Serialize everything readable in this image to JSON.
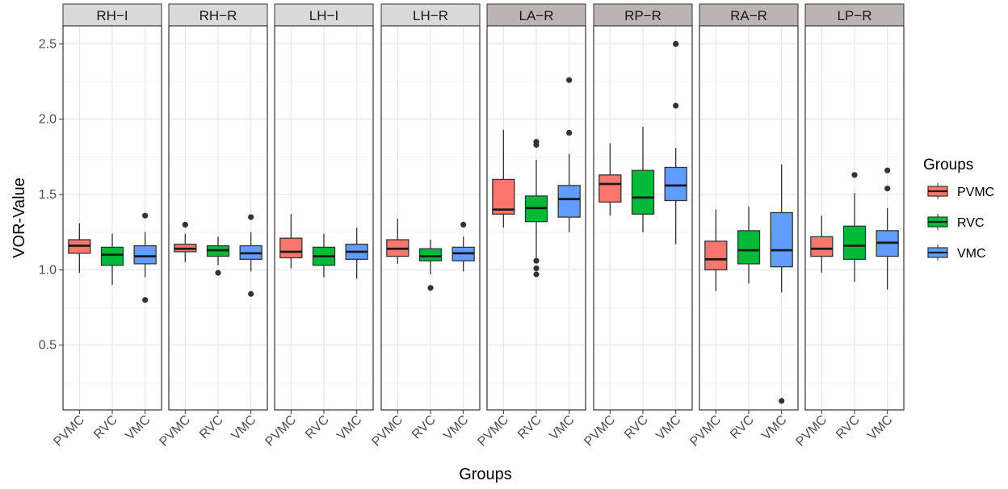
{
  "chart_data": {
    "type": "boxplot",
    "xlabel": "Groups",
    "ylabel": "VOR-Value",
    "ylim": [
      0.07,
      2.62
    ],
    "yticks": [
      0.5,
      1.0,
      1.5,
      2.0,
      2.5
    ],
    "ytick_labels": [
      "0.5",
      "1.0",
      "1.5",
      "2.0",
      "2.5"
    ],
    "categories": [
      "PVMC",
      "RVC",
      "VMC"
    ],
    "colors": {
      "PVMC": "#F8766D",
      "RVC": "#00BA38",
      "VMC": "#619CFF"
    },
    "strip_colors": {
      "light": "#d9d9d9",
      "dark": "#bcb4b4"
    },
    "legend": {
      "title": "Groups",
      "entries": [
        "PVMC",
        "RVC",
        "VMC"
      ],
      "position": "right"
    },
    "panels": [
      {
        "label": "RH−I",
        "strip": "light",
        "boxes": [
          {
            "group": "PVMC",
            "q1": 1.11,
            "median": 1.16,
            "q3": 1.2,
            "lower": 0.98,
            "upper": 1.31,
            "outliers": []
          },
          {
            "group": "RVC",
            "q1": 1.03,
            "median": 1.1,
            "q3": 1.15,
            "lower": 0.9,
            "upper": 1.24,
            "outliers": []
          },
          {
            "group": "VMC",
            "q1": 1.04,
            "median": 1.09,
            "q3": 1.16,
            "lower": 0.95,
            "upper": 1.25,
            "outliers": [
              1.36,
              0.8
            ]
          }
        ]
      },
      {
        "label": "RH−R",
        "strip": "light",
        "boxes": [
          {
            "group": "PVMC",
            "q1": 1.12,
            "median": 1.14,
            "q3": 1.17,
            "lower": 1.05,
            "upper": 1.24,
            "outliers": [
              1.3
            ]
          },
          {
            "group": "RVC",
            "q1": 1.09,
            "median": 1.13,
            "q3": 1.16,
            "lower": 1.03,
            "upper": 1.22,
            "outliers": [
              0.98
            ]
          },
          {
            "group": "VMC",
            "q1": 1.07,
            "median": 1.11,
            "q3": 1.16,
            "lower": 0.99,
            "upper": 1.25,
            "outliers": [
              1.35,
              0.84
            ]
          }
        ]
      },
      {
        "label": "LH−I",
        "strip": "light",
        "boxes": [
          {
            "group": "PVMC",
            "q1": 1.08,
            "median": 1.12,
            "q3": 1.21,
            "lower": 1.01,
            "upper": 1.37,
            "outliers": []
          },
          {
            "group": "RVC",
            "q1": 1.03,
            "median": 1.09,
            "q3": 1.15,
            "lower": 0.95,
            "upper": 1.24,
            "outliers": []
          },
          {
            "group": "VMC",
            "q1": 1.07,
            "median": 1.12,
            "q3": 1.17,
            "lower": 0.94,
            "upper": 1.28,
            "outliers": []
          }
        ]
      },
      {
        "label": "LH−R",
        "strip": "light",
        "boxes": [
          {
            "group": "PVMC",
            "q1": 1.09,
            "median": 1.14,
            "q3": 1.2,
            "lower": 1.04,
            "upper": 1.34,
            "outliers": []
          },
          {
            "group": "RVC",
            "q1": 1.06,
            "median": 1.09,
            "q3": 1.14,
            "lower": 0.97,
            "upper": 1.2,
            "outliers": [
              0.88
            ]
          },
          {
            "group": "VMC",
            "q1": 1.06,
            "median": 1.11,
            "q3": 1.15,
            "lower": 0.99,
            "upper": 1.22,
            "outliers": [
              1.3
            ]
          }
        ]
      },
      {
        "label": "LA−R",
        "strip": "dark",
        "boxes": [
          {
            "group": "PVMC",
            "q1": 1.37,
            "median": 1.4,
            "q3": 1.6,
            "lower": 1.28,
            "upper": 1.93,
            "outliers": []
          },
          {
            "group": "RVC",
            "q1": 1.32,
            "median": 1.41,
            "q3": 1.49,
            "lower": 1.08,
            "upper": 1.73,
            "outliers": [
              1.85,
              1.83,
              1.06,
              1.01,
              0.97
            ]
          },
          {
            "group": "VMC",
            "q1": 1.35,
            "median": 1.47,
            "q3": 1.56,
            "lower": 1.25,
            "upper": 1.77,
            "outliers": [
              2.26,
              1.91
            ]
          }
        ]
      },
      {
        "label": "RP−R",
        "strip": "dark",
        "boxes": [
          {
            "group": "PVMC",
            "q1": 1.45,
            "median": 1.57,
            "q3": 1.63,
            "lower": 1.36,
            "upper": 1.84,
            "outliers": []
          },
          {
            "group": "RVC",
            "q1": 1.37,
            "median": 1.48,
            "q3": 1.66,
            "lower": 1.25,
            "upper": 1.95,
            "outliers": []
          },
          {
            "group": "VMC",
            "q1": 1.46,
            "median": 1.56,
            "q3": 1.68,
            "lower": 1.17,
            "upper": 1.81,
            "outliers": [
              2.5,
              2.09
            ]
          }
        ]
      },
      {
        "label": "RA−R",
        "strip": "dark",
        "boxes": [
          {
            "group": "PVMC",
            "q1": 1.0,
            "median": 1.07,
            "q3": 1.19,
            "lower": 0.86,
            "upper": 1.4,
            "outliers": []
          },
          {
            "group": "RVC",
            "q1": 1.04,
            "median": 1.13,
            "q3": 1.26,
            "lower": 0.91,
            "upper": 1.42,
            "outliers": []
          },
          {
            "group": "VMC",
            "q1": 1.02,
            "median": 1.13,
            "q3": 1.38,
            "lower": 0.85,
            "upper": 1.7,
            "outliers": [
              0.13
            ]
          }
        ]
      },
      {
        "label": "LP−R",
        "strip": "dark",
        "boxes": [
          {
            "group": "PVMC",
            "q1": 1.09,
            "median": 1.14,
            "q3": 1.22,
            "lower": 0.98,
            "upper": 1.36,
            "outliers": []
          },
          {
            "group": "RVC",
            "q1": 1.07,
            "median": 1.16,
            "q3": 1.29,
            "lower": 0.92,
            "upper": 1.51,
            "outliers": [
              1.63
            ]
          },
          {
            "group": "VMC",
            "q1": 1.09,
            "median": 1.18,
            "q3": 1.26,
            "lower": 0.87,
            "upper": 1.41,
            "outliers": [
              1.66,
              1.54
            ]
          }
        ]
      }
    ]
  }
}
